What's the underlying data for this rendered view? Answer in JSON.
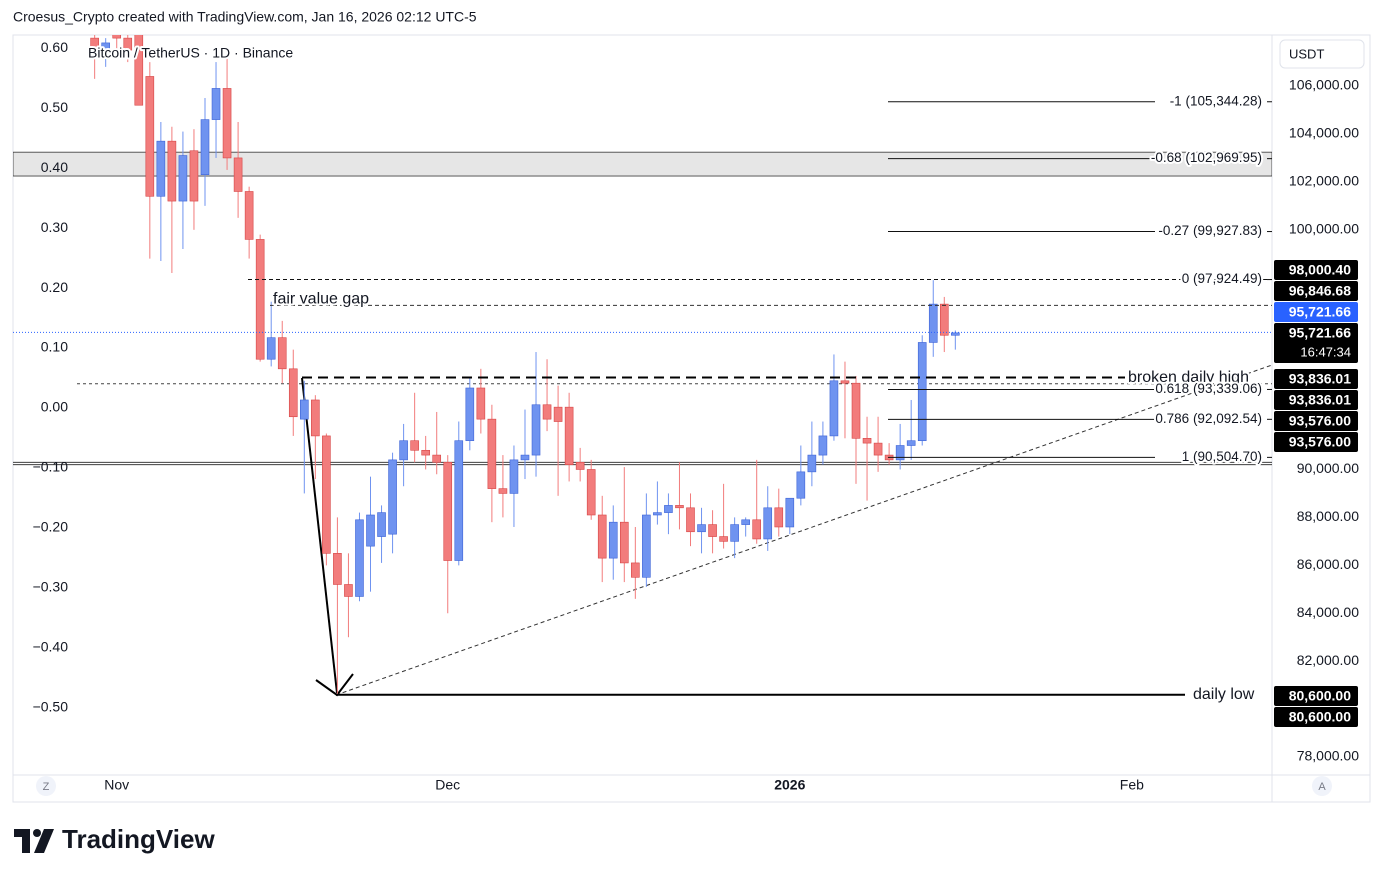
{
  "header": {
    "text": "Croesus_Crypto created with TradingView.com, Jan 16, 2026 02:12 UTC-5"
  },
  "chart_data": {
    "type": "candlestick",
    "title": "Bitcoin / TetherUS · 1D · Binance",
    "currency": "USDT",
    "categories": [
      null,
      null,
      null,
      null,
      null,
      null,
      null,
      null,
      null,
      null,
      null,
      null,
      null,
      null,
      null,
      null,
      null,
      null,
      null,
      null,
      null,
      null,
      null,
      null,
      null,
      null,
      null,
      null,
      null,
      null,
      null,
      null,
      null,
      null,
      null,
      null,
      null,
      null,
      null,
      null,
      null,
      null,
      null,
      null,
      null,
      null,
      null,
      null,
      null,
      null,
      null,
      null,
      null,
      null,
      null,
      null,
      null,
      null,
      null,
      null,
      null,
      null,
      null,
      null,
      null,
      null,
      null,
      null,
      null,
      null,
      null,
      null,
      null,
      null,
      null,
      null,
      null,
      null,
      null
    ],
    "open": [
      108000,
      107200,
      108500,
      108000,
      108300,
      106400,
      101400,
      103700,
      101200,
      103300,
      102300,
      104600,
      105900,
      103000,
      101600,
      99600,
      94600,
      95500,
      94200,
      92100,
      92900,
      91400,
      86500,
      85200,
      84700,
      86800,
      87200,
      87300,
      90400,
      91200,
      90800,
      90600,
      90300,
      86200,
      91200,
      93400,
      92100,
      89200,
      89000,
      90400,
      90600,
      92700,
      92600,
      92600,
      90300,
      90000,
      88100,
      86300,
      87800,
      86100,
      85500,
      88100,
      88200,
      88500,
      88400,
      87400,
      87700,
      87200,
      87000,
      87700,
      87900,
      87100,
      88400,
      87600,
      88800,
      89900,
      90600,
      91400,
      93700,
      93600,
      91300,
      91100,
      90600,
      90400,
      91000,
      91200,
      95300,
      96900,
      95600
    ],
    "high": [
      108500,
      108000,
      109000,
      108800,
      108800,
      107000,
      104500,
      104300,
      104100,
      104200,
      105500,
      107000,
      107500,
      104500,
      101800,
      99800,
      97000,
      96200,
      95000,
      93700,
      93100,
      91500,
      88000,
      86500,
      88200,
      89700,
      88500,
      90700,
      91900,
      93200,
      91400,
      92400,
      90600,
      92000,
      93800,
      94200,
      92700,
      90600,
      91000,
      92500,
      94900,
      94600,
      93500,
      93200,
      90900,
      90400,
      88900,
      88500,
      90100,
      87600,
      89000,
      89500,
      89000,
      90300,
      89000,
      88400,
      88300,
      89400,
      88000,
      88000,
      90400,
      89300,
      89200,
      88800,
      91000,
      92000,
      92000,
      94800,
      94500,
      93900,
      92200,
      92200,
      91100,
      91900,
      92900,
      95600,
      97900,
      97200,
      95800
    ],
    "low": [
      106300,
      106800,
      107500,
      107000,
      105200,
      98800,
      98700,
      98200,
      99200,
      100000,
      101000,
      103000,
      102500,
      100500,
      98800,
      94500,
      94300,
      93600,
      91400,
      89000,
      89600,
      86000,
      80600,
      83000,
      84500,
      84900,
      86100,
      86500,
      89300,
      90300,
      90000,
      89800,
      84000,
      86000,
      90800,
      91500,
      87800,
      88000,
      87600,
      89600,
      89700,
      91600,
      88900,
      89500,
      89500,
      87900,
      85300,
      85400,
      85300,
      84600,
      85100,
      87700,
      87300,
      87500,
      86800,
      86500,
      86500,
      86700,
      86300,
      87200,
      86900,
      86600,
      87200,
      87300,
      88500,
      89300,
      90200,
      91200,
      91300,
      89400,
      88700,
      89900,
      90200,
      90000,
      90400,
      91000,
      94700,
      94900,
      95000
    ],
    "close": [
      107200,
      107800,
      108000,
      107500,
      105200,
      101400,
      103700,
      101200,
      103100,
      101200,
      104600,
      105900,
      103000,
      101600,
      99600,
      94600,
      95500,
      94200,
      92200,
      92900,
      91400,
      86500,
      85200,
      84700,
      87900,
      88100,
      88200,
      90400,
      91200,
      90800,
      90600,
      90300,
      86200,
      91200,
      93400,
      92100,
      89200,
      89000,
      90400,
      90600,
      92700,
      92100,
      92000,
      90200,
      90000,
      88100,
      86300,
      87800,
      86100,
      85500,
      88100,
      88200,
      88500,
      88400,
      87400,
      87700,
      87200,
      87000,
      87700,
      87900,
      87100,
      88400,
      87600,
      88800,
      89900,
      90600,
      91400,
      93700,
      93600,
      91300,
      91100,
      90600,
      90400,
      91000,
      91200,
      95300,
      96900,
      95600,
      95700
    ],
    "up_color": "#6f93f0",
    "down_color": "#f27c7c",
    "xlim": [
      -7.4,
      106.7
    ],
    "xticks": [
      {
        "value": 2,
        "label": "Nov"
      },
      {
        "value": 32,
        "label": "Dec"
      },
      {
        "value": 63,
        "label": "2026"
      },
      {
        "value": 94,
        "label": "Feb"
      }
    ],
    "ylim": [
      77250,
      108130
    ],
    "yticks": [
      {
        "value": 106000,
        "label": "106,000.00"
      },
      {
        "value": 104000,
        "label": "104,000.00"
      },
      {
        "value": 102000,
        "label": "102,000.00"
      },
      {
        "value": 100000,
        "label": "100,000.00"
      },
      {
        "value": 90000,
        "label": "90,000.00"
      },
      {
        "value": 88000,
        "label": "88,000.00"
      },
      {
        "value": 86000,
        "label": "86,000.00"
      },
      {
        "value": 84000,
        "label": "84,000.00"
      },
      {
        "value": 82000,
        "label": "82,000.00"
      },
      {
        "value": 78000,
        "label": "78,000.00"
      }
    ],
    "y2lim": [
      -0.612,
      0.622
    ],
    "y2ticks": [
      {
        "value": 0.6,
        "label": "0.60"
      },
      {
        "value": 0.5,
        "label": "0.50"
      },
      {
        "value": 0.4,
        "label": "0.40"
      },
      {
        "value": 0.3,
        "label": "0.30"
      },
      {
        "value": 0.2,
        "label": "0.20"
      },
      {
        "value": 0.1,
        "label": "0.10"
      },
      {
        "value": 0,
        "label": "0.00"
      },
      {
        "value": -0.1,
        "label": "−0.10"
      },
      {
        "value": -0.2,
        "label": "−0.20"
      },
      {
        "value": -0.3,
        "label": "−0.30"
      },
      {
        "value": -0.4,
        "label": "−0.40"
      },
      {
        "value": -0.5,
        "label": "−0.50"
      }
    ],
    "last_price": {
      "value": 95721.66,
      "color": "#2962ff"
    },
    "zone": [
      102245,
      103240
    ],
    "hlines": [
      90300,
      90200
    ],
    "dotted_lines": [
      93576
    ],
    "fib_levels": [
      {
        "value": 105344.28,
        "label": "-1 (105,344.28)"
      },
      {
        "value": 102969.95,
        "label": "-0.68 (102,969.95)"
      },
      {
        "value": 99927.83,
        "label": "-0.27 (99,927.83)"
      },
      {
        "value": 97924.49,
        "label": "0 (97,924.49)",
        "style": "dashed"
      },
      {
        "value": 93339.06,
        "label": "0.618 (93,339.06)"
      },
      {
        "value": 92092.54,
        "label": "0.786 (92,092.54)"
      },
      {
        "value": 90504.7,
        "label": "1 (90,504.70)"
      }
    ],
    "annotations": [
      {
        "label": "fair value gap",
        "value": 96846.68
      },
      {
        "label": "broken daily high",
        "value": 93836.01
      },
      {
        "label": "daily low",
        "value": 80600
      }
    ],
    "price_labels": [
      {
        "value": 98000.4,
        "label": "98,000.40",
        "color": "#000000"
      },
      {
        "value": 96846.68,
        "label": "96,846.68",
        "color": "#000000"
      },
      {
        "value": 95721.66,
        "label": "95,721.66",
        "color": "#2962ff"
      },
      {
        "value": 95721.66,
        "label": "95,721.66",
        "color": "#000000",
        "countdown": "16:47:34"
      },
      {
        "value": 93836.01,
        "label": "93,836.01",
        "color": "#000000"
      },
      {
        "value": 93836.01,
        "label": "93,836.01",
        "color": "#000000"
      },
      {
        "value": 93576,
        "label": "93,576.00",
        "color": "#000000"
      },
      {
        "value": 93576,
        "label": "93,576.00",
        "color": "#000000"
      },
      {
        "value": 80600,
        "label": "80,600.00",
        "color": "#000000"
      },
      {
        "value": 80600,
        "label": "80,600.00",
        "color": "#000000"
      }
    ]
  },
  "buttons": [
    "Z",
    "A"
  ],
  "footer": {
    "brand": "TradingView"
  }
}
